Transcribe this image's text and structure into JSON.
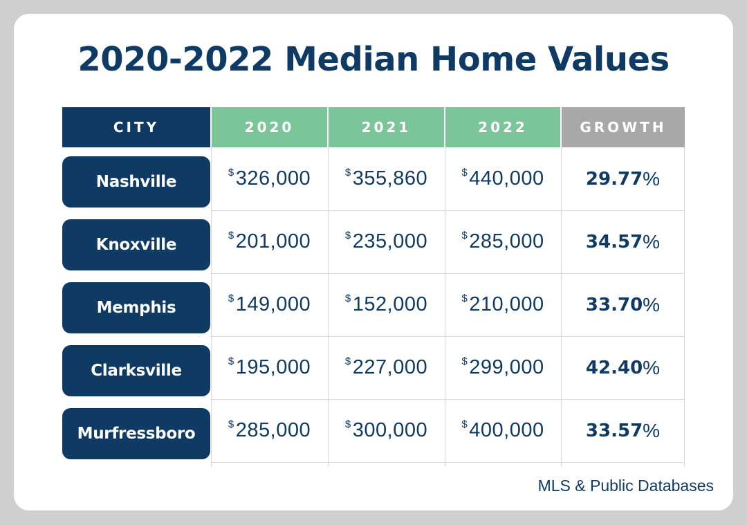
{
  "chart_data": {
    "type": "table",
    "title": "2020-2022 Median Home Values",
    "columns": {
      "city": "CITY",
      "years": [
        "2020",
        "2021",
        "2022"
      ],
      "growth": "GROWTH"
    },
    "currency_symbol": "$",
    "percent_symbol": "%",
    "rows": [
      {
        "city": "Nashville",
        "values": [
          "326,000",
          "355,860",
          "440,000"
        ],
        "growth": "29.77"
      },
      {
        "city": "Knoxville",
        "values": [
          "201,000",
          "235,000",
          "285,000"
        ],
        "growth": "34.57"
      },
      {
        "city": "Memphis",
        "values": [
          "149,000",
          "152,000",
          "210,000"
        ],
        "growth": "33.70"
      },
      {
        "city": "Clarksville",
        "values": [
          "195,000",
          "227,000",
          "299,000"
        ],
        "growth": "42.40"
      },
      {
        "city": "Murfressboro",
        "values": [
          "285,000",
          "300,000",
          "400,000"
        ],
        "growth": "33.57"
      }
    ],
    "source": "MLS & Public Databases"
  },
  "colors": {
    "navy": "#0e3a63",
    "green": "#7cc59b",
    "gray": "#a8a8a8",
    "frame": "#cfcfcf"
  }
}
